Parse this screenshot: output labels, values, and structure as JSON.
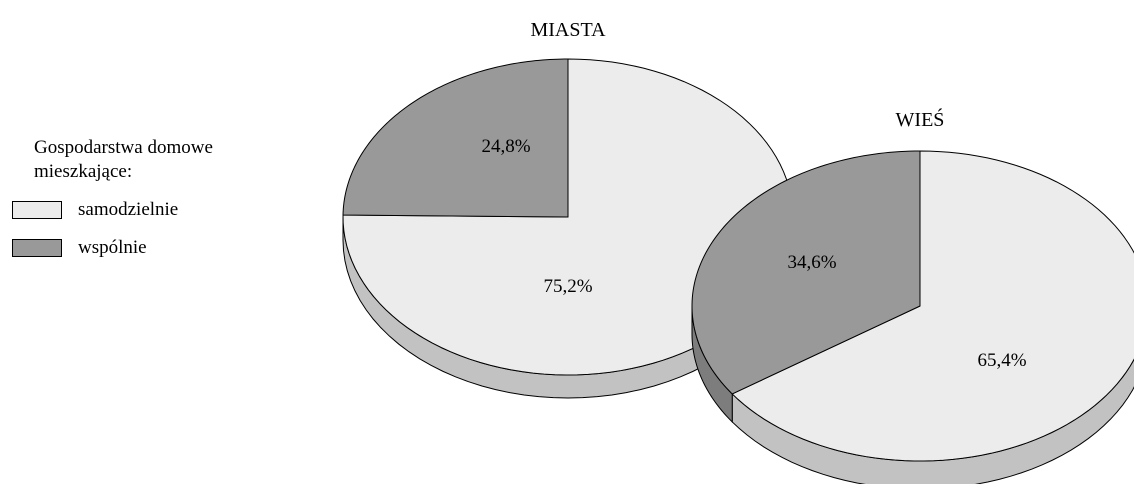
{
  "legend": {
    "title": "Gospodarstwa domowe\nmieszkające:",
    "items": [
      {
        "label": "samodzielnie",
        "color": "#ececec"
      },
      {
        "label": "wspólnie",
        "color": "#999999"
      }
    ]
  },
  "chart_data": [
    {
      "type": "pie",
      "title": "MIASTA",
      "slices": [
        {
          "name": "samodzielnie",
          "value": 75.2,
          "label": "75,2%",
          "color": "#ececec"
        },
        {
          "name": "wspólnie",
          "value": 24.8,
          "label": "24,8%",
          "color": "#999999"
        }
      ]
    },
    {
      "type": "pie",
      "title": "WIEŚ",
      "slices": [
        {
          "name": "samodzielnie",
          "value": 65.4,
          "label": "65,4%",
          "color": "#ececec"
        },
        {
          "name": "wspólnie",
          "value": 34.6,
          "label": "34,6%",
          "color": "#999999"
        }
      ]
    }
  ]
}
